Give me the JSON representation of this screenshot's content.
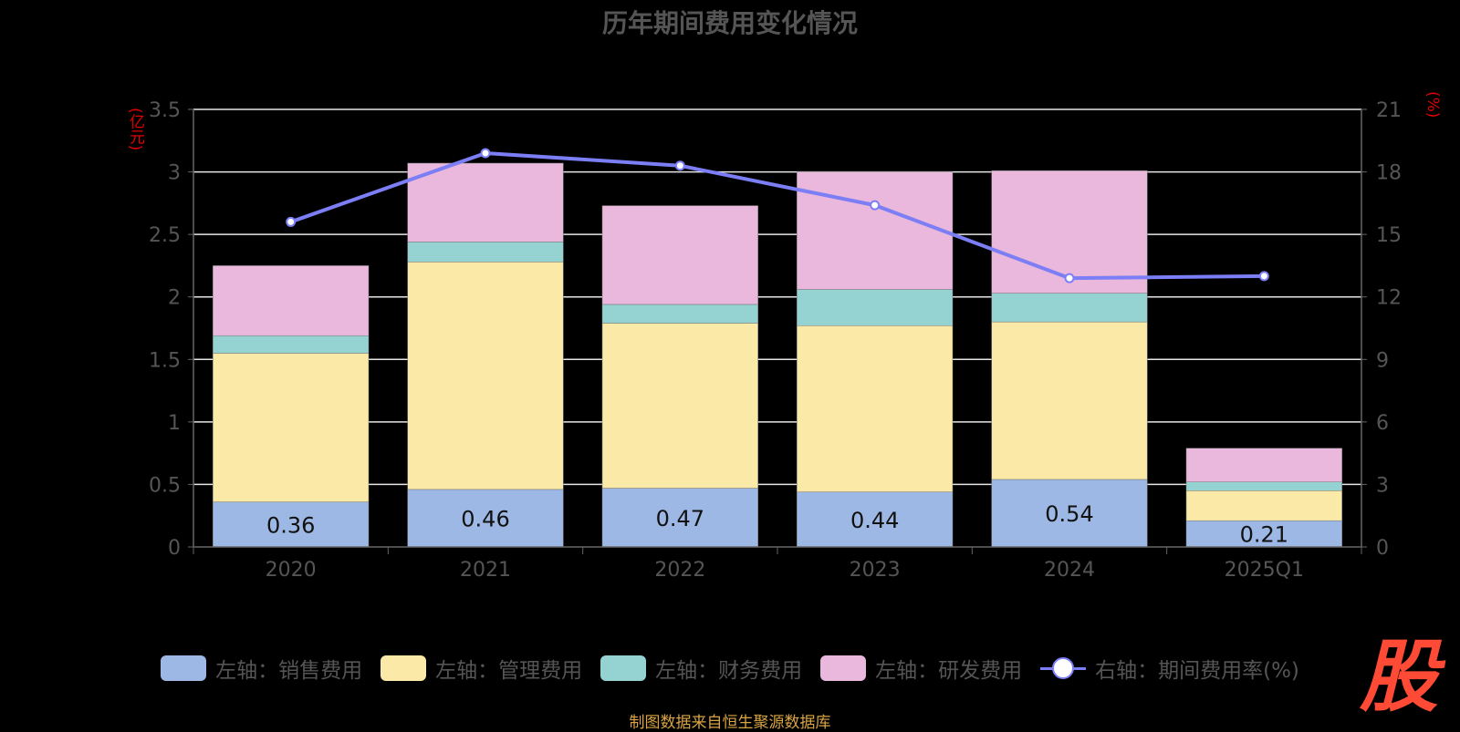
{
  "chart_data": {
    "type": "bar",
    "title": "历年期间费用变化情况",
    "left_axis_unit": "(亿元)",
    "right_axis_unit": "(%)",
    "categories": [
      "2020",
      "2021",
      "2022",
      "2023",
      "2024",
      "2025Q1"
    ],
    "ylim_left": [
      0,
      3.5
    ],
    "yticks_left": [
      "0",
      "0.5",
      "1",
      "1.5",
      "2",
      "2.5",
      "3",
      "3.5"
    ],
    "ylim_right": [
      0,
      21
    ],
    "yticks_right": [
      "0",
      "3",
      "6",
      "9",
      "12",
      "15",
      "18",
      "21"
    ],
    "stacked": true,
    "grid": true,
    "legend_position": "bottom",
    "series": [
      {
        "name": "左轴：销售费用",
        "type": "bar",
        "color": "#9db8e4",
        "values": [
          0.36,
          0.46,
          0.47,
          0.44,
          0.54,
          0.21
        ],
        "labels": [
          "0.36",
          "0.46",
          "0.47",
          "0.44",
          "0.54",
          "0.21"
        ]
      },
      {
        "name": "左轴：管理费用",
        "type": "bar",
        "color": "#fbe9a7",
        "values": [
          1.19,
          1.82,
          1.32,
          1.33,
          1.26,
          0.24
        ]
      },
      {
        "name": "左轴：财务费用",
        "type": "bar",
        "color": "#95d3d3",
        "values": [
          0.14,
          0.16,
          0.15,
          0.29,
          0.23,
          0.07
        ]
      },
      {
        "name": "左轴：研发费用",
        "type": "bar",
        "color": "#e9b8dc",
        "values": [
          0.56,
          0.63,
          0.79,
          0.94,
          0.98,
          0.27
        ]
      },
      {
        "name": "右轴：期间费用率(%)",
        "type": "line",
        "color": "#7b7ef4",
        "values": [
          15.6,
          18.9,
          18.3,
          16.4,
          12.9,
          13.0
        ]
      }
    ]
  },
  "source_text": "制图数据来自恒生聚源数据库",
  "logo_text": "股"
}
